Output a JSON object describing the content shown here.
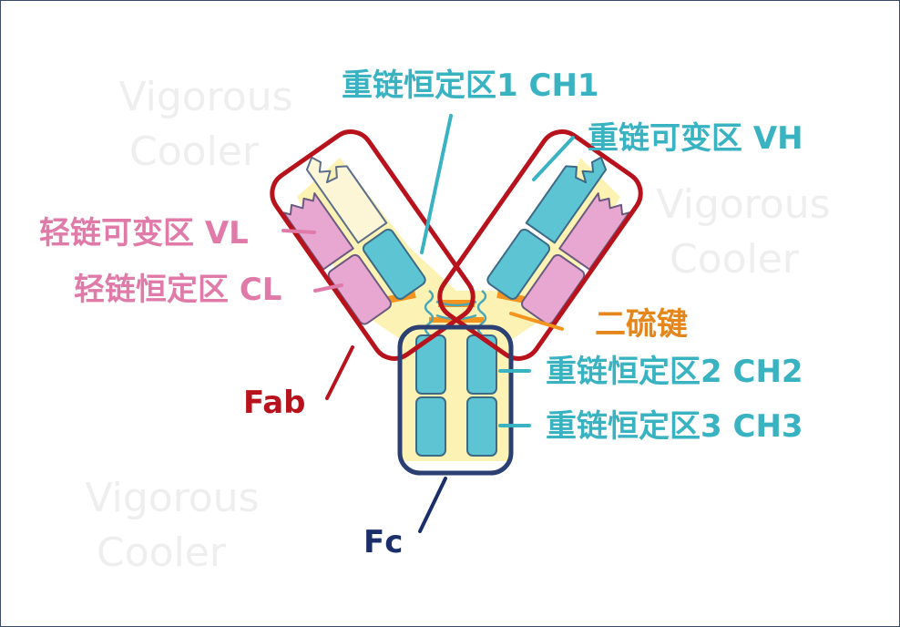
{
  "labels": {
    "ch1": "重链恒定区1  CH1",
    "vh": "重链可变区  VH",
    "vl": "轻链可变区 VL",
    "cl": "轻链恒定区 CL",
    "disulfide": "二硫键",
    "ch2": "重链恒定区2  CH2",
    "ch3": "重链恒定区3  CH3",
    "fab": "Fab",
    "fc": "Fc"
  },
  "watermarks": [
    {
      "line1": "Vigorous",
      "line2": "Cooler"
    },
    {
      "line1": "Vigorous",
      "line2": "Cooler"
    },
    {
      "line1": "Vigorous",
      "line2": "Cooler"
    }
  ],
  "colors": {
    "heavy_chain": "#5cc4d3",
    "light_chain": "#e7a7d1",
    "hinge_bg": "#fbf0a6",
    "disulfide": "#f4931e",
    "fab_box": "#b8121c",
    "fc_box": "#2b3f73",
    "label_teal": "#39b3c2",
    "label_pink": "#e07aa8"
  }
}
